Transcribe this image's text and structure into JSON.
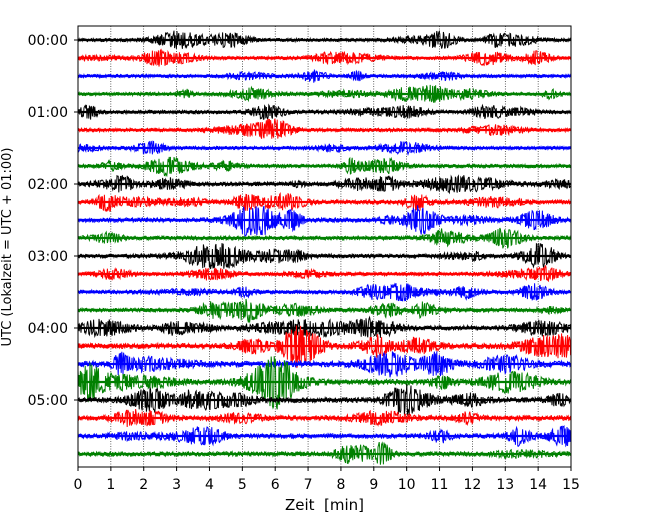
{
  "chart_data": {
    "type": "line",
    "title": "",
    "xlabel": "Zeit  [min]",
    "ylabel": "UTC (Lokalzeit = UTC + 01:00)",
    "xlim": [
      0,
      15
    ],
    "x_ticks": [
      "0",
      "1",
      "2",
      "3",
      "4",
      "5",
      "6",
      "7",
      "8",
      "9",
      "10",
      "11",
      "12",
      "13",
      "14",
      "15"
    ],
    "y_ticks": [
      "00:00",
      "01:00",
      "02:00",
      "03:00",
      "04:00",
      "05:00"
    ],
    "grid": "vertical dotted",
    "trace_interval_minutes": 15,
    "trace_colors": [
      "#000000",
      "#ff0000",
      "#0000ff",
      "#008000"
    ],
    "traces": [
      {
        "start": "00:00",
        "amplitude": 0.25
      },
      {
        "start": "00:15",
        "amplitude": 0.25
      },
      {
        "start": "00:30",
        "amplitude": 0.25
      },
      {
        "start": "00:45",
        "amplitude": 0.25
      },
      {
        "start": "01:00",
        "amplitude": 0.35
      },
      {
        "start": "01:15",
        "amplitude": 0.35
      },
      {
        "start": "01:30",
        "amplitude": 0.3
      },
      {
        "start": "01:45",
        "amplitude": 0.35
      },
      {
        "start": "02:00",
        "amplitude": 0.45
      },
      {
        "start": "02:15",
        "amplitude": 0.5
      },
      {
        "start": "02:30",
        "amplitude": 0.55
      },
      {
        "start": "02:45",
        "amplitude": 0.45
      },
      {
        "start": "03:00",
        "amplitude": 0.45
      },
      {
        "start": "03:15",
        "amplitude": 0.35
      },
      {
        "start": "03:30",
        "amplitude": 0.4
      },
      {
        "start": "03:45",
        "amplitude": 0.45
      },
      {
        "start": "04:00",
        "amplitude": 0.6
      },
      {
        "start": "04:15",
        "amplitude": 0.75
      },
      {
        "start": "04:30",
        "amplitude": 0.95
      },
      {
        "start": "04:45",
        "amplitude": 0.8
      },
      {
        "start": "05:00",
        "amplitude": 0.7
      },
      {
        "start": "05:15",
        "amplitude": 0.65
      },
      {
        "start": "05:30",
        "amplitude": 0.6
      },
      {
        "start": "05:45",
        "amplitude": 0.55
      }
    ]
  }
}
